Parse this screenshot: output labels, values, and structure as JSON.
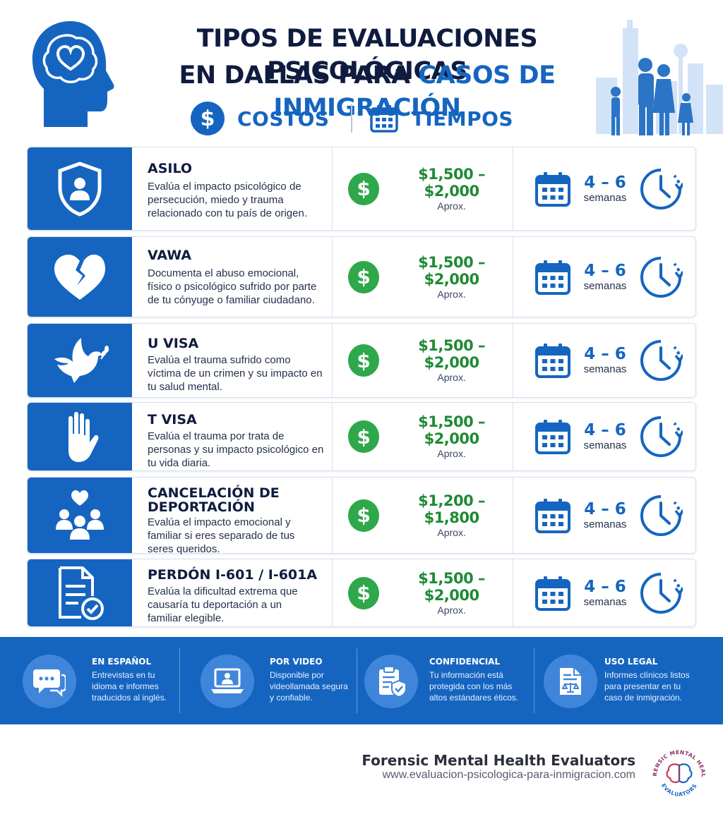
{
  "header": {
    "title_line1": "TIPOS DE EVALUACIONES PSICOLÓGICAS",
    "title_line2_plain": "EN DALLAS PARA ",
    "title_line2_accent": "CASOS DE INMIGRACIÓN",
    "costs_label": "COSTOS",
    "costs_symbol": "$",
    "times_label": "TIEMPOS"
  },
  "rows": [
    {
      "title": "ASILO",
      "description": "Evalúa el impacto psicológico de persecución, miedo y trauma relacionado con tu país de origen.",
      "cost": "$1,500 – $2,000",
      "cost_note": "Aprox.",
      "time": "4 – 6",
      "time_unit": "semanas",
      "icon": "shield-person-icon"
    },
    {
      "title": "VAWA",
      "description": "Documenta el abuso emocional, físico o psicológico sufrido por parte de tu cónyuge o familiar ciudadano.",
      "cost": "$1,500 – $2,000",
      "cost_note": "Aprox.",
      "time": "4 – 6",
      "time_unit": "semanas",
      "icon": "broken-heart-icon"
    },
    {
      "title": "U VISA",
      "description": "Evalúa el trauma sufrido como víctima de un crimen y su impacto en tu salud mental.",
      "cost": "$1,500 – $2,000",
      "cost_note": "Aprox.",
      "time": "4 – 6",
      "time_unit": "semanas",
      "icon": "dove-icon"
    },
    {
      "title": "T VISA",
      "description": "Evalúa el trauma por trata de personas y su impacto psicológico en tu vida diaria.",
      "cost": "$1,500 – $2,000",
      "cost_note": "Aprox.",
      "time": "4 – 6",
      "time_unit": "semanas",
      "icon": "stop-hand-icon"
    },
    {
      "title_line1": "CANCELACIÓN DE",
      "title_line2": "DEPORTACIÓN",
      "description": "Evalúa el impacto emocional y familiar si eres separado de tus seres queridos.",
      "cost": "$1,200 – $1,800",
      "cost_note": "Aprox.",
      "time": "4 – 6",
      "time_unit": "semanas",
      "icon": "family-heart-icon"
    },
    {
      "title": "PERDÓN I-601 / I-601A",
      "description": "Evalúa la dificultad extrema que causaría tu deportación a un familiar elegible.",
      "cost": "$1,500 – $2,000",
      "cost_note": "Aprox.",
      "time": "4 – 6",
      "time_unit": "semanas",
      "icon": "document-check-icon"
    }
  ],
  "row_currency_symbol": "$",
  "features": [
    {
      "title": "EN ESPAÑOL",
      "description": "Entrevistas en tu idioma e informes traducidos al inglés.",
      "icon": "chat-bubbles-icon"
    },
    {
      "title": "POR VIDEO",
      "description": "Disponible por videollamada segura y confiable.",
      "icon": "laptop-video-icon"
    },
    {
      "title": "CONFIDENCIAL",
      "description": "Tu información está protegida con los más altos estándares éticos.",
      "icon": "clipboard-shield-icon"
    },
    {
      "title": "USO LEGAL",
      "description": "Informes clínicos listos para presentar en tu caso de inmigración.",
      "icon": "legal-document-icon"
    }
  ],
  "brand": {
    "name": "Forensic Mental Health Evaluators",
    "url": "www.evaluacion-psicologica-para-inmigracion.com",
    "logo_text_top": "FORENSIC MENTAL HEALTH",
    "logo_text_bottom": "EVALUATORS"
  },
  "colors": {
    "primary_blue": "#1565c0",
    "cost_green": "#2ea84a",
    "title_navy": "#0f1c3f"
  }
}
